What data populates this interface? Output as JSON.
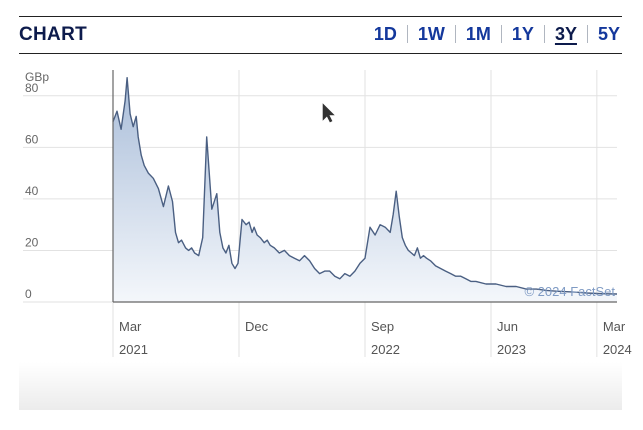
{
  "header": {
    "title": "CHART",
    "ranges": [
      "1D",
      "1W",
      "1M",
      "1Y",
      "3Y",
      "5Y"
    ],
    "active_range": "3Y"
  },
  "colors": {
    "line": "#4a5f82",
    "fill_top": "#a9bdd9",
    "fill_bottom": "#f4f7fb",
    "grid": "#e2e2e2",
    "title": "#0d1b4c",
    "link": "#14389c"
  },
  "chart_data": {
    "type": "area",
    "ylabel": "GBp",
    "ylim": [
      0,
      90
    ],
    "yticks": [
      0,
      20,
      40,
      60,
      80
    ],
    "xlim": [
      0,
      1
    ],
    "xticks": [
      {
        "month": "Mar",
        "year": "2021",
        "pos": 0.0
      },
      {
        "month": "Dec",
        "year": "",
        "pos": 0.25
      },
      {
        "month": "Sep",
        "year": "2022",
        "pos": 0.5
      },
      {
        "month": "Jun",
        "year": "2023",
        "pos": 0.75
      },
      {
        "month": "Mar",
        "year": "2024",
        "pos": 0.96
      }
    ],
    "grid": true,
    "watermark": "© 2024 FactSet",
    "series": [
      {
        "x": [
          0.0,
          0.008,
          0.016,
          0.024,
          0.028,
          0.034,
          0.04,
          0.046,
          0.05,
          0.056,
          0.062,
          0.07,
          0.08,
          0.09,
          0.1,
          0.11,
          0.118,
          0.124,
          0.13,
          0.136,
          0.144,
          0.15,
          0.156,
          0.162,
          0.17,
          0.178,
          0.186,
          0.196,
          0.206,
          0.212,
          0.218,
          0.224,
          0.23,
          0.236,
          0.242,
          0.248,
          0.256,
          0.264,
          0.27,
          0.276,
          0.28,
          0.286,
          0.292,
          0.3,
          0.306,
          0.312,
          0.32,
          0.33,
          0.34,
          0.35,
          0.36,
          0.37,
          0.38,
          0.39,
          0.4,
          0.41,
          0.42,
          0.43,
          0.44,
          0.45,
          0.46,
          0.47,
          0.48,
          0.49,
          0.5,
          0.51,
          0.52,
          0.53,
          0.54,
          0.55,
          0.556,
          0.562,
          0.568,
          0.574,
          0.58,
          0.586,
          0.592,
          0.598,
          0.604,
          0.61,
          0.616,
          0.622,
          0.63,
          0.64,
          0.65,
          0.66,
          0.67,
          0.68,
          0.69,
          0.7,
          0.71,
          0.72,
          0.74,
          0.76,
          0.78,
          0.8,
          0.82,
          0.84,
          0.86,
          0.88,
          0.9,
          0.92,
          0.94,
          0.96,
          0.98,
          1.0
        ],
        "y": [
          70,
          74,
          67,
          78,
          87,
          73,
          68,
          72,
          64,
          57,
          53,
          50,
          48,
          44,
          37,
          45,
          39,
          27,
          23,
          24,
          21,
          20,
          21,
          19,
          18,
          25,
          64,
          36,
          42,
          27,
          21,
          19,
          22,
          15,
          13,
          15,
          32,
          30,
          31,
          27,
          29,
          26,
          25,
          23,
          24,
          22,
          21,
          19,
          20,
          18,
          17,
          16,
          18,
          16,
          13,
          11,
          12,
          12,
          10,
          9,
          11,
          10,
          12,
          15,
          17,
          29,
          26,
          30,
          29,
          27,
          34,
          43,
          33,
          25,
          22,
          20,
          19,
          18,
          21,
          17,
          18,
          17,
          16,
          14,
          13,
          12,
          11,
          10,
          10,
          9,
          8,
          8,
          7,
          7,
          6,
          6,
          5,
          5,
          4.5,
          4.2,
          4,
          3.8,
          3.5,
          3.3,
          3.2,
          3.1
        ]
      }
    ]
  }
}
